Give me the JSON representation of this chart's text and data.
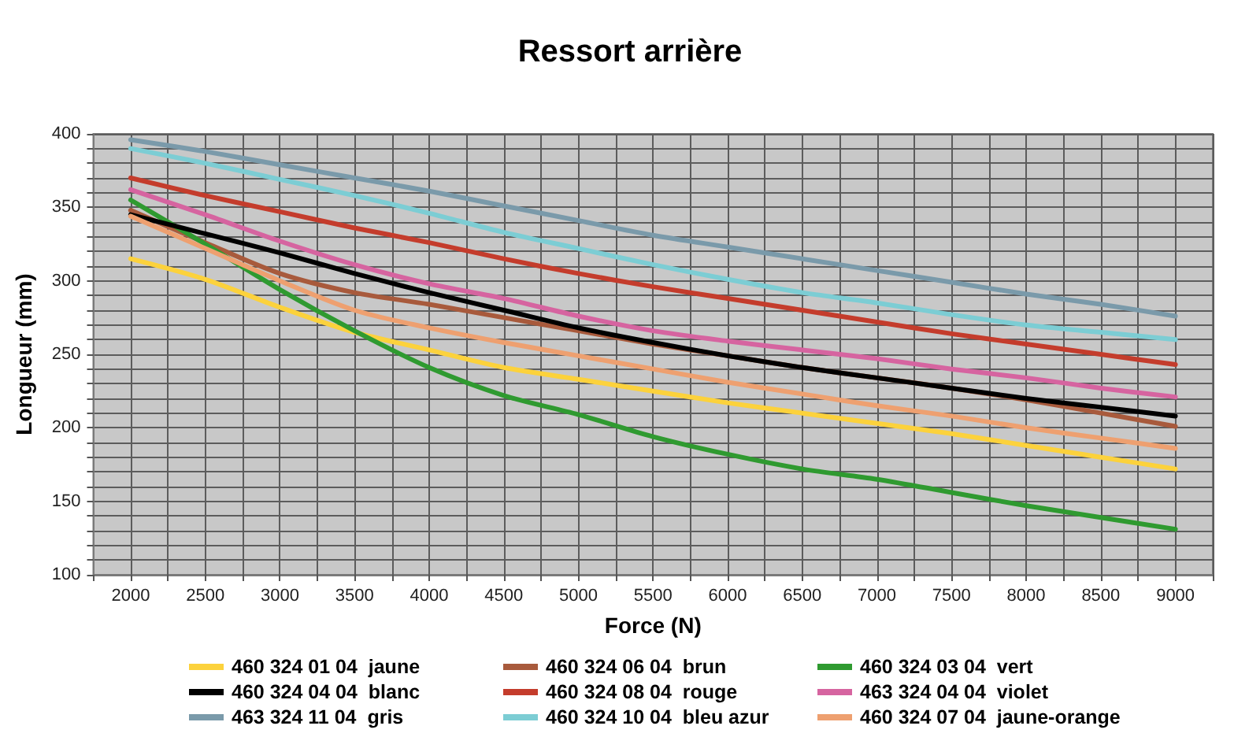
{
  "chart_data": {
    "type": "line",
    "title": "Ressort arrière",
    "xlabel": "Force (N)",
    "ylabel": "Longueur (mm)",
    "x": [
      2000,
      2500,
      3000,
      3500,
      4000,
      4500,
      5000,
      5500,
      6000,
      6500,
      7000,
      7500,
      8000,
      8500,
      9000
    ],
    "series": [
      {
        "name": "460 324 01 04  jaune",
        "color": "#fcd23c",
        "values": [
          315,
          301,
          282,
          265,
          253,
          241,
          233,
          225,
          217,
          210,
          203,
          196,
          188,
          180,
          172
        ]
      },
      {
        "name": "460 324 06 04  brun",
        "color": "#a85a3c",
        "values": [
          348,
          326,
          305,
          292,
          284,
          275,
          266,
          257,
          249,
          241,
          234,
          227,
          219,
          210,
          201
        ]
      },
      {
        "name": "460 324 03 04  vert",
        "color": "#2f9a30",
        "values": [
          355,
          325,
          294,
          266,
          241,
          222,
          209,
          194,
          182,
          172,
          165,
          156,
          147,
          139,
          131
        ]
      },
      {
        "name": "460 324 04 04  blanc",
        "color": "#000000",
        "values": [
          345,
          332,
          319,
          305,
          292,
          280,
          268,
          258,
          249,
          241,
          234,
          227,
          220,
          214,
          208
        ]
      },
      {
        "name": "460 324 08 04  rouge",
        "color": "#c43c2c",
        "values": [
          370,
          358,
          347,
          336,
          326,
          315,
          305,
          296,
          288,
          280,
          272,
          264,
          257,
          250,
          243
        ]
      },
      {
        "name": "463 324 04 04  violet",
        "color": "#d664a0",
        "values": [
          362,
          345,
          327,
          311,
          298,
          288,
          276,
          266,
          259,
          253,
          247,
          240,
          234,
          227,
          221
        ]
      },
      {
        "name": "463 324 11 04  gris",
        "color": "#7a9aaa",
        "values": [
          396,
          388,
          379,
          370,
          361,
          351,
          341,
          331,
          323,
          315,
          307,
          299,
          291,
          284,
          276
        ]
      },
      {
        "name": "460 324 10 04  bleu azur",
        "color": "#7ccdd4",
        "values": [
          390,
          380,
          369,
          358,
          346,
          333,
          322,
          311,
          301,
          292,
          285,
          277,
          270,
          265,
          260
        ]
      },
      {
        "name": "460 324 07 04  jaune-orange",
        "color": "#eea070",
        "values": [
          344,
          322,
          300,
          280,
          268,
          258,
          249,
          240,
          231,
          223,
          215,
          208,
          200,
          193,
          186
        ]
      }
    ],
    "xlim": [
      1750,
      9250
    ],
    "xticks": [
      {
        "value": 1750,
        "label": null
      },
      2000,
      {
        "value": 2250,
        "label": null
      },
      2500,
      {
        "value": 2750,
        "label": null
      },
      3000,
      {
        "value": 3250,
        "label": null
      },
      3500,
      {
        "value": 3750,
        "label": null
      },
      4000,
      {
        "value": 4250,
        "label": null
      },
      4500,
      {
        "value": 4750,
        "label": null
      },
      5000,
      {
        "value": 5250,
        "label": null
      },
      5500,
      {
        "value": 5750,
        "label": null
      },
      6000,
      {
        "value": 6250,
        "label": null
      },
      6500,
      {
        "value": 6750,
        "label": null
      },
      7000,
      {
        "value": 7250,
        "label": null
      },
      7500,
      {
        "value": 7750,
        "label": null
      },
      8000,
      {
        "value": 8250,
        "label": null
      },
      8500,
      {
        "value": 8750,
        "label": null
      },
      9000,
      {
        "value": 9250,
        "label": null
      }
    ],
    "ylim": [
      100,
      400
    ],
    "yticks": [
      100,
      {
        "value": 110,
        "label": null
      },
      {
        "value": 120,
        "label": null
      },
      {
        "value": 130,
        "label": null
      },
      {
        "value": 140,
        "label": null
      },
      150,
      {
        "value": 160,
        "label": null
      },
      {
        "value": 170,
        "label": null
      },
      {
        "value": 180,
        "label": null
      },
      {
        "value": 190,
        "label": null
      },
      200,
      {
        "value": 210,
        "label": null
      },
      {
        "value": 220,
        "label": null
      },
      {
        "value": 230,
        "label": null
      },
      {
        "value": 240,
        "label": null
      },
      250,
      {
        "value": 260,
        "label": null
      },
      {
        "value": 270,
        "label": null
      },
      {
        "value": 280,
        "label": null
      },
      {
        "value": 290,
        "label": null
      },
      300,
      {
        "value": 310,
        "label": null
      },
      {
        "value": 320,
        "label": null
      },
      {
        "value": 330,
        "label": null
      },
      {
        "value": 340,
        "label": null
      },
      350,
      {
        "value": 360,
        "label": null
      },
      {
        "value": 370,
        "label": null
      },
      {
        "value": 380,
        "label": null
      },
      {
        "value": 390,
        "label": null
      },
      400
    ],
    "grid": true,
    "legend": "bottom",
    "marker": "none",
    "line_style": "solid"
  }
}
